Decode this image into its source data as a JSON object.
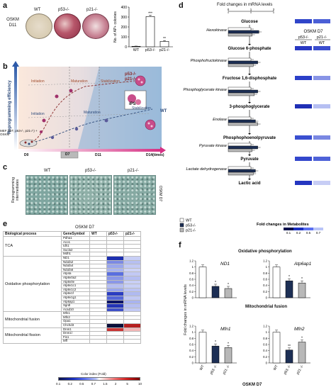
{
  "panel_letters": {
    "a": "a",
    "b": "b",
    "c": "c",
    "d": "d",
    "e": "e",
    "f": "f"
  },
  "panel_a": {
    "row_label": [
      "OSKM",
      "D11"
    ],
    "dish_labels": [
      "WT",
      "p53-/-",
      "p21-/-"
    ],
    "chart_data": {
      "type": "bar",
      "categories": [
        "WT",
        "p53-/-",
        "p21-/-"
      ],
      "values": [
        5,
        305,
        55
      ],
      "errors": [
        2,
        12,
        8
      ],
      "significance": [
        "",
        "***",
        "**"
      ],
      "ylabel": "No. of AP+ colonies",
      "ylim": [
        0,
        400
      ],
      "yticks": [
        "0",
        "100",
        "200",
        "300",
        "400"
      ]
    }
  },
  "panel_b": {
    "ylabel": "Reprogramming efficiency",
    "stage_labels": {
      "initiation_top": "Initiation",
      "maturation_top": "Maturation",
      "stabilization_top": "Stabilization",
      "initiation_bottom": "Initiation",
      "maturation_bottom": "Maturation",
      "stabilization_bottom": "Stabilization"
    },
    "mutant_label": [
      "p53-/-",
      "p21-/-"
    ],
    "wt_label": "WT",
    "ips_label": "iPS",
    "mef_label": "MEF (WT, p53-/-, p21-/-) + OSKM",
    "time_ticks": [
      "D0",
      "D7",
      "D11",
      "D14(times)"
    ]
  },
  "panel_c": {
    "col_labels": [
      "WT",
      "p53-/-",
      "p21-/-"
    ],
    "side_label": [
      "Reprogramming",
      "intermediates"
    ],
    "right_label": "OSKM D7"
  },
  "panel_d": {
    "top_label": "Fold changes in mRNA levels",
    "axis_ticks": [
      "0",
      "1",
      "2"
    ],
    "heat_title": "OSKM D7",
    "heat_cols": [
      "p53-/-",
      "p21-/-"
    ],
    "heat_sub": [
      "WT",
      "WT"
    ],
    "metabolites": [
      "Glucose",
      "Glucose 6-phosphate",
      "Fructose 1,6-disphosphate",
      "3-phosphoglycerate",
      "Phosphophoenolpyruvate",
      "Pyruvate",
      "Lactic acid"
    ],
    "enzymes": [
      "Hexokinase",
      "Phosphofructokinase",
      "Phosphoglycerate kinase",
      "Enolase",
      "Pyruvate kinase",
      "Lactate dehydrogenase"
    ],
    "chart_data": {
      "type": "bar",
      "categories": [
        "Hexokinase",
        "Phosphofructokinase",
        "Phosphoglycerate kinase",
        "Enolase",
        "Pyruvate kinase",
        "Lactate dehydrogenase"
      ],
      "series": [
        {
          "name": "WT",
          "values": [
            1.0,
            1.0,
            1.0,
            1.0,
            1.0,
            1.0
          ]
        },
        {
          "name": "p53-/-",
          "values": [
            1.35,
            1.3,
            1.3,
            1.2,
            1.3,
            1.2
          ]
        },
        {
          "name": "p21-/-",
          "values": [
            1.05,
            1.1,
            1.15,
            1.3,
            1.05,
            1.1
          ]
        }
      ],
      "xlim": [
        0,
        2
      ],
      "legend": "bottom-left"
    },
    "legend_items": [
      "WT",
      "p53-/-",
      "p21-/-"
    ],
    "color_scale_label": "Fold changes in Metabolites",
    "color_scale_ticks": [
      "0.1",
      "0.2",
      "0.5",
      "0.7"
    ],
    "colors": {
      "wt": "#ffffff",
      "p53": "#1d2f55",
      "p21": "#b8b8b8"
    }
  },
  "panel_e": {
    "header_left": "OSKM D7",
    "col_headers": [
      "Biological process",
      "GeneSymbol",
      "WT",
      "p53-/-",
      "p21-/-"
    ],
    "groups": [
      {
        "process": "TCA",
        "genes": [
          "Pdha1",
          "Aco1",
          "Idh1",
          "Sucla2",
          "Mdh1"
        ]
      },
      {
        "process": "Oxidative phosphorylation",
        "genes": [
          "ND1",
          "Ndufa2",
          "Ndufa4",
          "Ndufa6",
          "Atp4a",
          "Atp6v0a2",
          "Atp6v0e",
          "Atp6v1c1",
          "Atp6v1c2",
          "Atp6v1f",
          "Atp6v1g1",
          "Atp6ap1",
          "Sgrdl",
          "Acad10"
        ]
      },
      {
        "process": "Mitochondrial fusion",
        "genes": [
          "Mfn1",
          "Mfn2",
          "Opa1",
          "Chchd3"
        ]
      },
      {
        "process": "Mitochondrial fission",
        "genes": [
          "Dnm1",
          "Dnm1l",
          "Fis1",
          "Mff"
        ]
      }
    ],
    "color_index_title": "Color index (Fold)",
    "color_index_ticks": [
      "0.1",
      "0.2",
      "0.5",
      "0.7",
      "1.5",
      "2",
      "5",
      "10"
    ]
  },
  "panel_f": {
    "ylabel": "Fold changes in mRNA levels",
    "section_titles": [
      "Oxidative phosphorylation",
      "Mitochondrial fusion"
    ],
    "xlabel": "OSKM D7",
    "categories": [
      "WT",
      "p53 -/-",
      "p21 -/-"
    ],
    "chart_data": [
      {
        "type": "bar",
        "title": "ND1",
        "categories": [
          "WT",
          "p53 -/-",
          "p21 -/-"
        ],
        "values": [
          1.0,
          0.37,
          0.3
        ],
        "sig": [
          "",
          "*",
          "*"
        ],
        "ylim": [
          0,
          1.2
        ],
        "yticks": [
          "0",
          "0.2",
          "0.4",
          "0.6",
          "0.8",
          "1",
          "1.2"
        ]
      },
      {
        "type": "bar",
        "title": "Atp6ap1",
        "categories": [
          "WT",
          "p53 -/-",
          "p21 -/-"
        ],
        "values": [
          1.0,
          0.55,
          0.48
        ],
        "sig": [
          "",
          "*",
          "*"
        ],
        "ylim": [
          0,
          1.2
        ],
        "yticks": [
          "0",
          "0.2",
          "0.4",
          "0.6",
          "0.8",
          "1",
          "1.2"
        ]
      },
      {
        "type": "bar",
        "title": "Mfn1",
        "categories": [
          "WT",
          "p53 -/-",
          "p21 -/-"
        ],
        "values": [
          1.0,
          0.55,
          0.5
        ],
        "sig": [
          "",
          "*",
          "*"
        ],
        "ylim": [
          0,
          1.2
        ],
        "yticks": [
          "0",
          "0.2",
          "0.4",
          "0.6",
          "0.8",
          "1",
          "1.2"
        ]
      },
      {
        "type": "bar",
        "title": "Mfn2",
        "categories": [
          "WT",
          "p53 -/-",
          "p21 -/-"
        ],
        "values": [
          1.0,
          0.42,
          0.68
        ],
        "sig": [
          "",
          "**",
          "*"
        ],
        "ylim": [
          0,
          1.2
        ],
        "yticks": [
          "0",
          "0.2",
          "0.4",
          "0.6",
          "0.8",
          "1",
          "1.2"
        ]
      }
    ]
  }
}
